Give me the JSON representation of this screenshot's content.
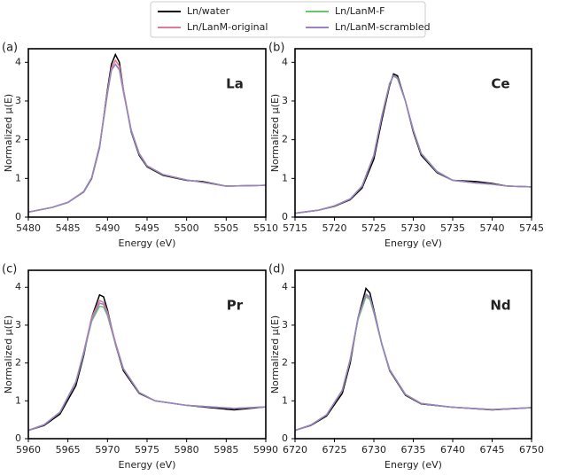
{
  "chart_data": [
    {
      "type": "line",
      "panel_label": "(a)",
      "annotation": "La",
      "xlabel": "Energy (eV)",
      "ylabel": "Normalized μ(E)",
      "x": [
        5480,
        5483,
        5485,
        5487,
        5488,
        5489,
        5490,
        5490.5,
        5491,
        5491.5,
        5492,
        5493,
        5494,
        5495,
        5497,
        5500,
        5502,
        5505,
        5510
      ],
      "series": [
        {
          "name": "Ln/water",
          "color": "#000000",
          "values": [
            0.13,
            0.25,
            0.38,
            0.65,
            1.0,
            1.8,
            3.3,
            3.95,
            4.2,
            4.0,
            3.3,
            2.2,
            1.6,
            1.3,
            1.08,
            0.95,
            0.92,
            0.8,
            0.82
          ]
        },
        {
          "name": "Ln/LanM-original",
          "color": "#e07a96",
          "values": [
            0.13,
            0.25,
            0.38,
            0.66,
            1.02,
            1.85,
            3.25,
            3.85,
            4.05,
            3.9,
            3.3,
            2.25,
            1.65,
            1.33,
            1.1,
            0.96,
            0.9,
            0.8,
            0.82
          ]
        },
        {
          "name": "Ln/LanM-F",
          "color": "#6cc46c",
          "values": [
            0.13,
            0.25,
            0.38,
            0.66,
            1.02,
            1.82,
            3.2,
            3.8,
            3.95,
            3.8,
            3.25,
            2.22,
            1.63,
            1.32,
            1.1,
            0.96,
            0.9,
            0.8,
            0.82
          ]
        },
        {
          "name": "Ln/LanM-scrambled",
          "color": "#9b82c4",
          "values": [
            0.13,
            0.25,
            0.38,
            0.66,
            1.02,
            1.82,
            3.2,
            3.8,
            3.95,
            3.82,
            3.25,
            2.23,
            1.64,
            1.32,
            1.1,
            0.96,
            0.9,
            0.8,
            0.82
          ]
        }
      ],
      "xlim": [
        5480,
        5510
      ],
      "xticks": [
        5480,
        5485,
        5490,
        5495,
        5500,
        5505,
        5510
      ],
      "ylim": [
        0,
        4.35
      ],
      "yticks": [
        0,
        1,
        2,
        3,
        4
      ]
    },
    {
      "type": "line",
      "panel_label": "(b)",
      "annotation": "Ce",
      "xlabel": "Energy (eV)",
      "ylabel": "Normalized μ(E)",
      "x": [
        5715,
        5718,
        5720,
        5722,
        5723.5,
        5725,
        5726,
        5727,
        5727.5,
        5728,
        5729,
        5730,
        5731,
        5733,
        5735,
        5738,
        5740,
        5742,
        5745
      ],
      "series": [
        {
          "name": "Ln/water",
          "color": "#000000",
          "values": [
            0.1,
            0.18,
            0.28,
            0.45,
            0.75,
            1.5,
            2.5,
            3.4,
            3.7,
            3.65,
            3.0,
            2.2,
            1.6,
            1.15,
            0.95,
            0.92,
            0.87,
            0.8,
            0.78
          ]
        },
        {
          "name": "Ln/LanM-original",
          "color": "#e07a96",
          "values": [
            0.1,
            0.18,
            0.29,
            0.47,
            0.8,
            1.6,
            2.6,
            3.45,
            3.65,
            3.58,
            3.0,
            2.25,
            1.65,
            1.18,
            0.95,
            0.88,
            0.85,
            0.8,
            0.78
          ]
        },
        {
          "name": "Ln/LanM-F",
          "color": "#6cc46c",
          "values": [
            0.1,
            0.18,
            0.29,
            0.47,
            0.8,
            1.6,
            2.6,
            3.45,
            3.65,
            3.58,
            3.0,
            2.24,
            1.64,
            1.17,
            0.95,
            0.88,
            0.85,
            0.8,
            0.78
          ]
        },
        {
          "name": "Ln/LanM-scrambled",
          "color": "#9b82c4",
          "values": [
            0.1,
            0.18,
            0.29,
            0.47,
            0.8,
            1.6,
            2.6,
            3.45,
            3.66,
            3.6,
            3.0,
            2.25,
            1.65,
            1.18,
            0.95,
            0.88,
            0.85,
            0.8,
            0.78
          ]
        }
      ],
      "xlim": [
        5715,
        5745
      ],
      "xticks": [
        5715,
        5720,
        5725,
        5730,
        5735,
        5740,
        5745
      ],
      "ylim": [
        0,
        4.35
      ],
      "yticks": [
        0,
        1,
        2,
        3,
        4
      ]
    },
    {
      "type": "line",
      "panel_label": "(c)",
      "annotation": "Pr",
      "xlabel": "Energy (eV)",
      "ylabel": "Normalized μ(E)",
      "x": [
        5960,
        5962,
        5964,
        5966,
        5967,
        5968,
        5969,
        5969.5,
        5970,
        5971,
        5972,
        5974,
        5976,
        5980,
        5983,
        5986,
        5990
      ],
      "series": [
        {
          "name": "Ln/water",
          "color": "#000000",
          "values": [
            0.22,
            0.35,
            0.65,
            1.4,
            2.2,
            3.2,
            3.8,
            3.75,
            3.4,
            2.5,
            1.8,
            1.2,
            1.0,
            0.88,
            0.82,
            0.76,
            0.84
          ]
        },
        {
          "name": "Ln/LanM-original",
          "color": "#e07a96",
          "values": [
            0.22,
            0.37,
            0.7,
            1.5,
            2.3,
            3.2,
            3.65,
            3.6,
            3.35,
            2.55,
            1.85,
            1.22,
            1.0,
            0.88,
            0.84,
            0.8,
            0.84
          ]
        },
        {
          "name": "Ln/LanM-F",
          "color": "#6cc46c",
          "values": [
            0.22,
            0.37,
            0.7,
            1.5,
            2.25,
            3.1,
            3.5,
            3.48,
            3.25,
            2.5,
            1.85,
            1.22,
            1.0,
            0.88,
            0.84,
            0.8,
            0.84
          ]
        },
        {
          "name": "Ln/LanM-scrambled",
          "color": "#9b82c4",
          "values": [
            0.22,
            0.37,
            0.7,
            1.5,
            2.28,
            3.15,
            3.58,
            3.55,
            3.3,
            2.52,
            1.85,
            1.22,
            1.0,
            0.88,
            0.84,
            0.8,
            0.84
          ]
        }
      ],
      "xlim": [
        5960,
        5990
      ],
      "xticks": [
        5960,
        5965,
        5970,
        5975,
        5980,
        5985,
        5990
      ],
      "ylim": [
        0,
        4.45
      ],
      "yticks": [
        0,
        1,
        2,
        3,
        4
      ]
    },
    {
      "type": "line",
      "panel_label": "(d)",
      "annotation": "Nd",
      "xlabel": "Energy (eV)",
      "ylabel": "Normalized μ(E)",
      "x": [
        6720,
        6722,
        6724,
        6726,
        6727,
        6728,
        6729,
        6729.5,
        6730,
        6731,
        6732,
        6734,
        6736,
        6740,
        6745,
        6750
      ],
      "series": [
        {
          "name": "Ln/water",
          "color": "#000000",
          "values": [
            0.22,
            0.35,
            0.6,
            1.2,
            2.0,
            3.2,
            3.97,
            3.85,
            3.4,
            2.5,
            1.8,
            1.15,
            0.92,
            0.83,
            0.76,
            0.82
          ]
        },
        {
          "name": "Ln/LanM-original",
          "color": "#e07a96",
          "values": [
            0.22,
            0.36,
            0.63,
            1.28,
            2.1,
            3.2,
            3.8,
            3.72,
            3.35,
            2.5,
            1.82,
            1.17,
            0.93,
            0.83,
            0.77,
            0.82
          ]
        },
        {
          "name": "Ln/LanM-F",
          "color": "#6cc46c",
          "values": [
            0.22,
            0.36,
            0.63,
            1.28,
            2.08,
            3.15,
            3.75,
            3.68,
            3.32,
            2.5,
            1.82,
            1.17,
            0.93,
            0.83,
            0.77,
            0.82
          ]
        },
        {
          "name": "Ln/LanM-scrambled",
          "color": "#9b82c4",
          "values": [
            0.22,
            0.36,
            0.63,
            1.28,
            2.1,
            3.2,
            3.82,
            3.74,
            3.36,
            2.52,
            1.83,
            1.17,
            0.93,
            0.83,
            0.77,
            0.82
          ]
        }
      ],
      "xlim": [
        6720,
        6750
      ],
      "xticks": [
        6720,
        6725,
        6730,
        6735,
        6740,
        6745,
        6750
      ],
      "ylim": [
        0,
        4.45
      ],
      "yticks": [
        0,
        1,
        2,
        3,
        4
      ]
    }
  ]
}
